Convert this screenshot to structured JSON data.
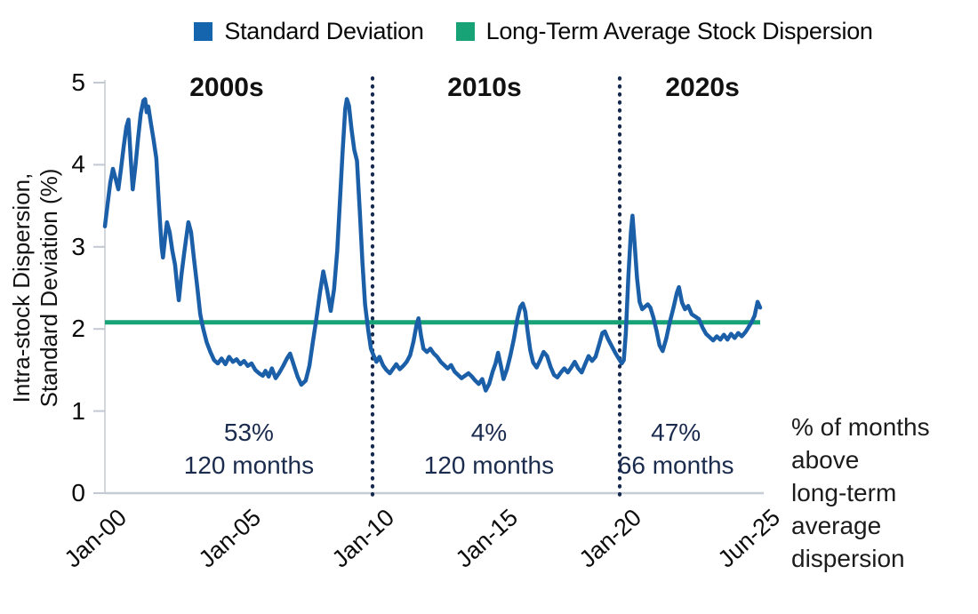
{
  "chart_data": {
    "type": "line",
    "title": "",
    "ylabel_lines": [
      "Intra-stock Dispersion,",
      "Standard Deviation (%)"
    ],
    "ylim": [
      0,
      5
    ],
    "y_ticks": [
      0,
      1,
      2,
      3,
      4,
      5
    ],
    "x_ticks": [
      {
        "label": "Jan-00",
        "year": 2000
      },
      {
        "label": "Jan-05",
        "year": 2005
      },
      {
        "label": "Jan-10",
        "year": 2010
      },
      {
        "label": "Jan-15",
        "year": 2015
      },
      {
        "label": "Jan-20",
        "year": 2020
      },
      {
        "label": "Jun-25",
        "year": 2025.42
      }
    ],
    "x_range": [
      2000,
      2025.5
    ],
    "grid": false,
    "legend_position": "top",
    "legend": [
      {
        "label": "Standard Deviation",
        "color": "#1565ae"
      },
      {
        "label": "Long-Term Average Stock Dispersion",
        "color": "#18a377"
      }
    ],
    "long_term_average": 2.08,
    "decade_dividers": [
      2010,
      2020
    ],
    "decade_labels": [
      {
        "text": "2000s",
        "center_year": 2004.55
      },
      {
        "text": "2010s",
        "center_year": 2014.53
      },
      {
        "text": "2020s",
        "center_year": 2023.24
      }
    ],
    "annotations": [
      {
        "percent": "53%",
        "months": "120 months",
        "center_year": 2005.38
      },
      {
        "percent": "4%",
        "months": "120 months",
        "center_year": 2014.71
      },
      {
        "percent": "47%",
        "months": "66 months",
        "center_year": 2022.2
      }
    ],
    "side_note_lines": [
      "% of months",
      "above",
      "long-term",
      "average",
      "dispersion"
    ],
    "colors": {
      "line": "#1b5fa8",
      "average_line": "#18a377",
      "divider": "#16294f",
      "axis": "#c5ccd5",
      "annotation_text": "#1a2b4e"
    },
    "series": {
      "name": "Standard Deviation",
      "points": [
        [
          2000.0,
          3.25
        ],
        [
          2000.1,
          3.52
        ],
        [
          2000.2,
          3.78
        ],
        [
          2000.3,
          3.95
        ],
        [
          2000.4,
          3.83
        ],
        [
          2000.5,
          3.7
        ],
        [
          2000.6,
          3.95
        ],
        [
          2000.7,
          4.22
        ],
        [
          2000.8,
          4.46
        ],
        [
          2000.88,
          4.55
        ],
        [
          2000.96,
          4.1
        ],
        [
          2001.04,
          3.7
        ],
        [
          2001.14,
          3.98
        ],
        [
          2001.24,
          4.32
        ],
        [
          2001.34,
          4.62
        ],
        [
          2001.44,
          4.78
        ],
        [
          2001.5,
          4.8
        ],
        [
          2001.56,
          4.64
        ],
        [
          2001.62,
          4.71
        ],
        [
          2001.72,
          4.5
        ],
        [
          2001.82,
          4.3
        ],
        [
          2001.92,
          4.08
        ],
        [
          2002.0,
          3.62
        ],
        [
          2002.06,
          3.3
        ],
        [
          2002.12,
          3.0
        ],
        [
          2002.17,
          2.87
        ],
        [
          2002.26,
          3.14
        ],
        [
          2002.32,
          3.3
        ],
        [
          2002.42,
          3.18
        ],
        [
          2002.52,
          2.95
        ],
        [
          2002.62,
          2.78
        ],
        [
          2002.7,
          2.52
        ],
        [
          2002.76,
          2.35
        ],
        [
          2002.86,
          2.66
        ],
        [
          2002.96,
          2.92
        ],
        [
          2003.06,
          3.16
        ],
        [
          2003.12,
          3.3
        ],
        [
          2003.22,
          3.18
        ],
        [
          2003.32,
          2.88
        ],
        [
          2003.45,
          2.52
        ],
        [
          2003.56,
          2.18
        ],
        [
          2003.66,
          2.02
        ],
        [
          2003.8,
          1.84
        ],
        [
          2003.94,
          1.72
        ],
        [
          2004.08,
          1.62
        ],
        [
          2004.22,
          1.58
        ],
        [
          2004.36,
          1.64
        ],
        [
          2004.5,
          1.57
        ],
        [
          2004.64,
          1.66
        ],
        [
          2004.78,
          1.6
        ],
        [
          2004.92,
          1.63
        ],
        [
          2005.06,
          1.57
        ],
        [
          2005.2,
          1.61
        ],
        [
          2005.34,
          1.55
        ],
        [
          2005.48,
          1.58
        ],
        [
          2005.62,
          1.5
        ],
        [
          2005.76,
          1.46
        ],
        [
          2005.9,
          1.43
        ],
        [
          2006.0,
          1.49
        ],
        [
          2006.12,
          1.42
        ],
        [
          2006.24,
          1.52
        ],
        [
          2006.38,
          1.4
        ],
        [
          2006.52,
          1.47
        ],
        [
          2006.66,
          1.55
        ],
        [
          2006.8,
          1.64
        ],
        [
          2006.92,
          1.7
        ],
        [
          2007.06,
          1.56
        ],
        [
          2007.2,
          1.42
        ],
        [
          2007.34,
          1.32
        ],
        [
          2007.5,
          1.37
        ],
        [
          2007.64,
          1.55
        ],
        [
          2007.76,
          1.82
        ],
        [
          2007.9,
          2.12
        ],
        [
          2008.04,
          2.45
        ],
        [
          2008.16,
          2.7
        ],
        [
          2008.3,
          2.48
        ],
        [
          2008.44,
          2.22
        ],
        [
          2008.56,
          2.48
        ],
        [
          2008.68,
          2.95
        ],
        [
          2008.78,
          3.55
        ],
        [
          2008.88,
          4.15
        ],
        [
          2008.98,
          4.68
        ],
        [
          2009.04,
          4.8
        ],
        [
          2009.12,
          4.72
        ],
        [
          2009.22,
          4.42
        ],
        [
          2009.32,
          4.18
        ],
        [
          2009.42,
          4.05
        ],
        [
          2009.52,
          3.45
        ],
        [
          2009.62,
          2.82
        ],
        [
          2009.72,
          2.3
        ],
        [
          2009.84,
          1.98
        ],
        [
          2009.94,
          1.76
        ],
        [
          2010.04,
          1.68
        ],
        [
          2010.16,
          1.6
        ],
        [
          2010.28,
          1.66
        ],
        [
          2010.42,
          1.56
        ],
        [
          2010.56,
          1.5
        ],
        [
          2010.7,
          1.46
        ],
        [
          2010.84,
          1.52
        ],
        [
          2010.96,
          1.57
        ],
        [
          2011.1,
          1.51
        ],
        [
          2011.24,
          1.55
        ],
        [
          2011.38,
          1.6
        ],
        [
          2011.52,
          1.68
        ],
        [
          2011.66,
          1.85
        ],
        [
          2011.78,
          2.05
        ],
        [
          2011.86,
          2.13
        ],
        [
          2011.96,
          1.92
        ],
        [
          2012.06,
          1.76
        ],
        [
          2012.2,
          1.72
        ],
        [
          2012.34,
          1.76
        ],
        [
          2012.48,
          1.7
        ],
        [
          2012.62,
          1.66
        ],
        [
          2012.76,
          1.6
        ],
        [
          2012.9,
          1.56
        ],
        [
          2013.04,
          1.52
        ],
        [
          2013.18,
          1.56
        ],
        [
          2013.32,
          1.48
        ],
        [
          2013.46,
          1.44
        ],
        [
          2013.6,
          1.4
        ],
        [
          2013.74,
          1.43
        ],
        [
          2013.88,
          1.46
        ],
        [
          2014.02,
          1.42
        ],
        [
          2014.16,
          1.37
        ],
        [
          2014.3,
          1.33
        ],
        [
          2014.44,
          1.39
        ],
        [
          2014.58,
          1.25
        ],
        [
          2014.72,
          1.33
        ],
        [
          2014.86,
          1.48
        ],
        [
          2014.98,
          1.58
        ],
        [
          2015.08,
          1.71
        ],
        [
          2015.2,
          1.54
        ],
        [
          2015.3,
          1.39
        ],
        [
          2015.44,
          1.51
        ],
        [
          2015.58,
          1.68
        ],
        [
          2015.72,
          1.88
        ],
        [
          2015.86,
          2.12
        ],
        [
          2015.98,
          2.27
        ],
        [
          2016.08,
          2.31
        ],
        [
          2016.18,
          2.21
        ],
        [
          2016.28,
          1.96
        ],
        [
          2016.38,
          1.74
        ],
        [
          2016.5,
          1.59
        ],
        [
          2016.64,
          1.53
        ],
        [
          2016.78,
          1.62
        ],
        [
          2016.92,
          1.72
        ],
        [
          2017.06,
          1.67
        ],
        [
          2017.2,
          1.54
        ],
        [
          2017.34,
          1.44
        ],
        [
          2017.48,
          1.41
        ],
        [
          2017.62,
          1.47
        ],
        [
          2017.76,
          1.52
        ],
        [
          2017.9,
          1.47
        ],
        [
          2018.04,
          1.53
        ],
        [
          2018.18,
          1.6
        ],
        [
          2018.32,
          1.52
        ],
        [
          2018.46,
          1.47
        ],
        [
          2018.6,
          1.57
        ],
        [
          2018.74,
          1.67
        ],
        [
          2018.88,
          1.61
        ],
        [
          2019.02,
          1.66
        ],
        [
          2019.16,
          1.8
        ],
        [
          2019.3,
          1.95
        ],
        [
          2019.4,
          1.97
        ],
        [
          2019.54,
          1.87
        ],
        [
          2019.68,
          1.79
        ],
        [
          2019.82,
          1.71
        ],
        [
          2019.96,
          1.64
        ],
        [
          2020.08,
          1.58
        ],
        [
          2020.16,
          1.62
        ],
        [
          2020.24,
          1.95
        ],
        [
          2020.34,
          2.65
        ],
        [
          2020.44,
          3.18
        ],
        [
          2020.5,
          3.38
        ],
        [
          2020.58,
          3.05
        ],
        [
          2020.68,
          2.62
        ],
        [
          2020.78,
          2.33
        ],
        [
          2020.88,
          2.24
        ],
        [
          2020.98,
          2.27
        ],
        [
          2021.1,
          2.3
        ],
        [
          2021.2,
          2.26
        ],
        [
          2021.32,
          2.14
        ],
        [
          2021.44,
          1.98
        ],
        [
          2021.56,
          1.8
        ],
        [
          2021.68,
          1.73
        ],
        [
          2021.82,
          1.88
        ],
        [
          2021.96,
          2.08
        ],
        [
          2022.1,
          2.25
        ],
        [
          2022.24,
          2.44
        ],
        [
          2022.32,
          2.51
        ],
        [
          2022.44,
          2.32
        ],
        [
          2022.56,
          2.24
        ],
        [
          2022.68,
          2.28
        ],
        [
          2022.82,
          2.18
        ],
        [
          2022.96,
          2.15
        ],
        [
          2023.1,
          2.12
        ],
        [
          2023.24,
          2.02
        ],
        [
          2023.38,
          1.94
        ],
        [
          2023.52,
          1.9
        ],
        [
          2023.66,
          1.86
        ],
        [
          2023.8,
          1.91
        ],
        [
          2023.94,
          1.87
        ],
        [
          2024.08,
          1.93
        ],
        [
          2024.22,
          1.87
        ],
        [
          2024.36,
          1.94
        ],
        [
          2024.5,
          1.89
        ],
        [
          2024.64,
          1.95
        ],
        [
          2024.78,
          1.91
        ],
        [
          2024.92,
          1.96
        ],
        [
          2025.04,
          2.02
        ],
        [
          2025.16,
          2.08
        ],
        [
          2025.28,
          2.16
        ],
        [
          2025.4,
          2.33
        ],
        [
          2025.5,
          2.26
        ]
      ]
    }
  }
}
